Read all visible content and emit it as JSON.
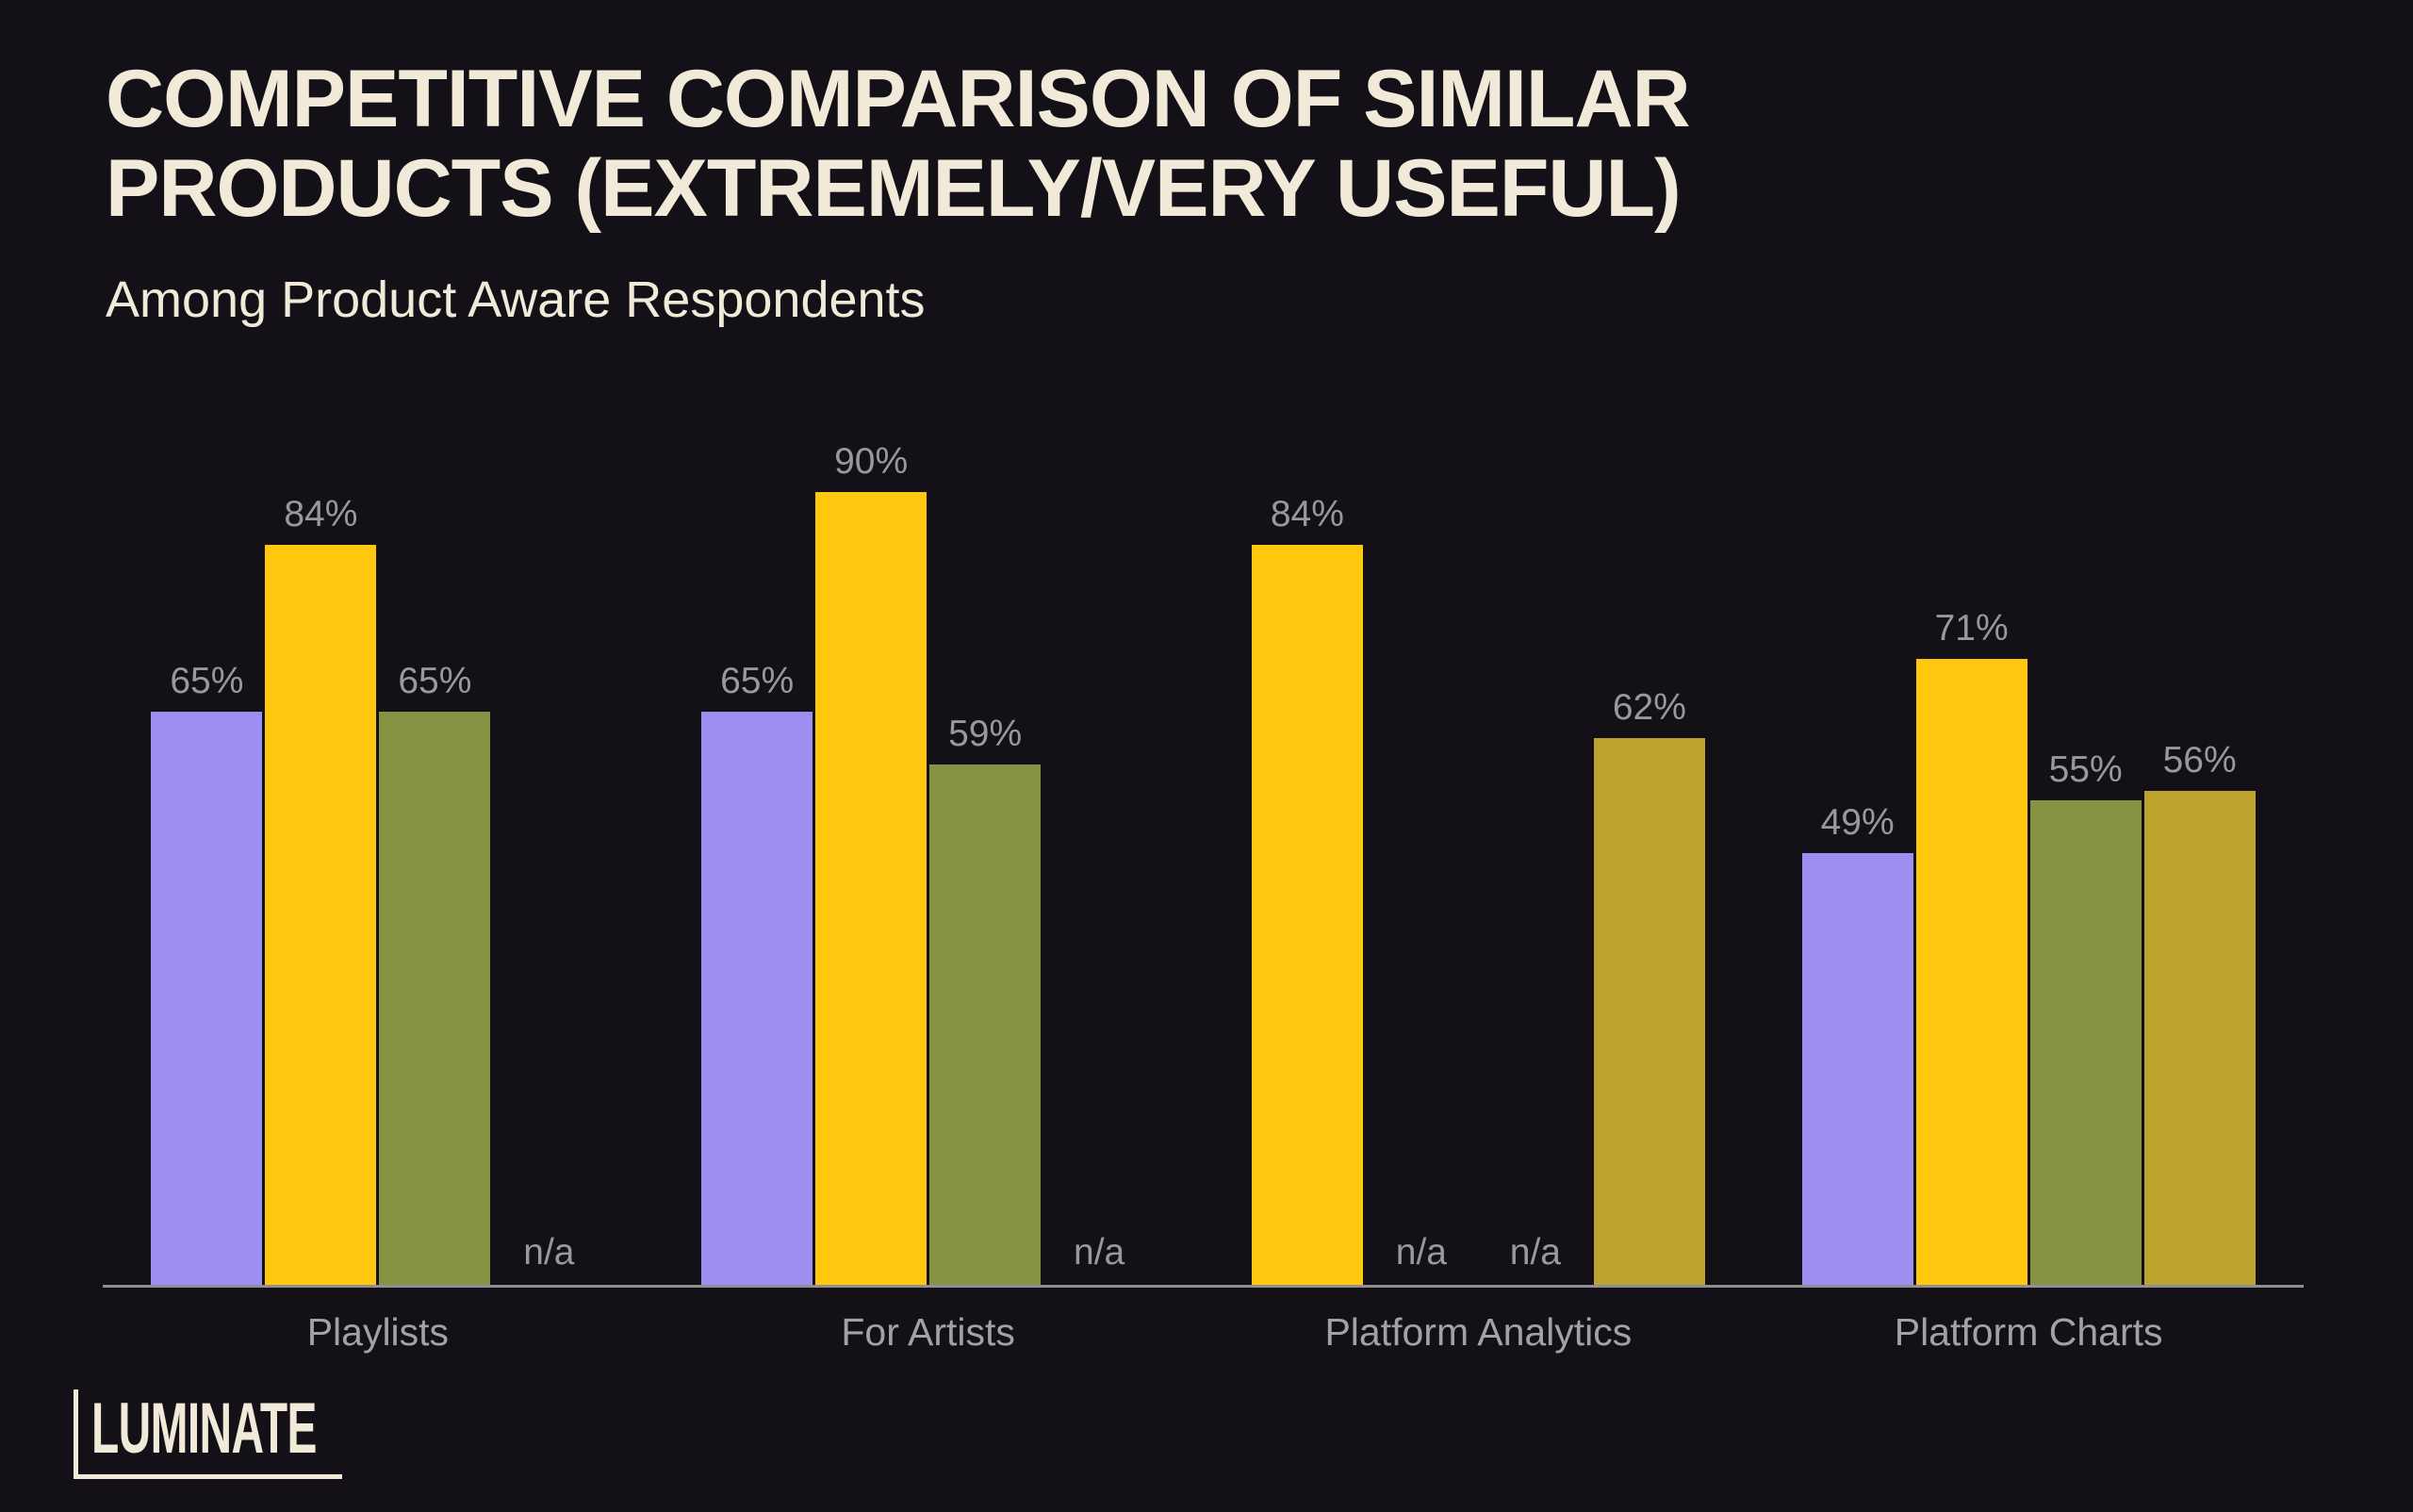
{
  "page": {
    "title": "COMPETITIVE COMPARISON OF SIMILAR PRODUCTS (EXTREMELY/VERY USEFUL)",
    "subtitle": "Among Product Aware Respondents",
    "logo_text": "LUMINATE",
    "background": "#131117"
  },
  "colors": {
    "cream": "#F1EAD9",
    "value_label_gray": "#99989D",
    "category_label_gray": "#A2A1A6",
    "axis_gray": "#8F8E93",
    "purple": "#9D8FF2",
    "yellow": "#FFC70E",
    "olive": "#879343",
    "mustard": "#BEA42F"
  },
  "chart_data": {
    "type": "bar",
    "variant": "grouped-vertical",
    "title": "COMPETITIVE COMPARISON OF SIMILAR PRODUCTS (EXTREMELY/VERY USEFUL)",
    "subtitle": "Among Product Aware Respondents",
    "unit": "%",
    "ylim": [
      0,
      100
    ],
    "grid": false,
    "legend": false,
    "y_axis_shown": false,
    "categories": [
      "Playlists",
      "For Artists",
      "Platform Analytics",
      "Platform Charts"
    ],
    "slots_per_group": 4,
    "na_text": "n/a",
    "groups": [
      {
        "label": "Playlists",
        "bars": [
          {
            "color": "purple",
            "value": 65,
            "label": "65%"
          },
          {
            "color": "yellow",
            "value": 84,
            "label": "84%"
          },
          {
            "color": "olive",
            "value": 65,
            "label": "65%"
          },
          {
            "color": null,
            "value": null,
            "label": "n/a"
          }
        ]
      },
      {
        "label": "For Artists",
        "bars": [
          {
            "color": "purple",
            "value": 65,
            "label": "65%"
          },
          {
            "color": "yellow",
            "value": 90,
            "label": "90%"
          },
          {
            "color": "olive",
            "value": 59,
            "label": "59%"
          },
          {
            "color": null,
            "value": null,
            "label": "n/a"
          }
        ]
      },
      {
        "label": "Platform Analytics",
        "bars": [
          {
            "color": "yellow",
            "value": 84,
            "label": "84%"
          },
          {
            "color": null,
            "value": null,
            "label": "n/a"
          },
          {
            "color": null,
            "value": null,
            "label": "n/a"
          },
          {
            "color": "mustard",
            "value": 62,
            "label": "62%"
          }
        ]
      },
      {
        "label": "Platform Charts",
        "bars": [
          {
            "color": "purple",
            "value": 49,
            "label": "49%"
          },
          {
            "color": "yellow",
            "value": 71,
            "label": "71%"
          },
          {
            "color": "olive",
            "value": 55,
            "label": "55%"
          },
          {
            "color": "mustard",
            "value": 56,
            "label": "56%"
          }
        ]
      }
    ]
  }
}
